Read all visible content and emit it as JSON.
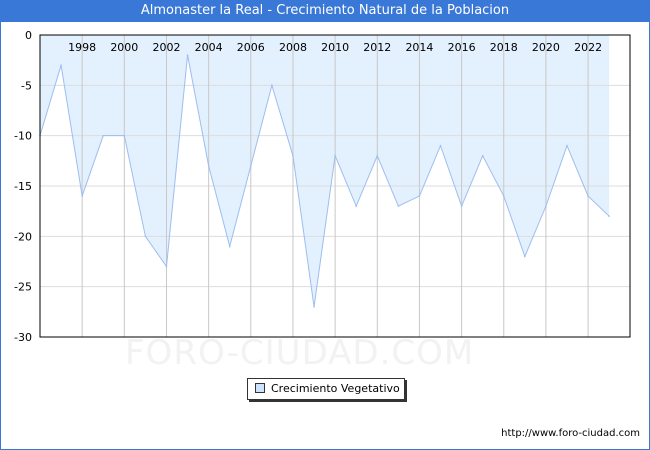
{
  "title": "Almonaster la Real - Crecimiento Natural de la Poblacion",
  "watermark": "FORO-CIUDAD.COM",
  "url": "http://www.foro-ciudad.com",
  "chart_data": {
    "type": "area",
    "title": "Almonaster la Real - Crecimiento Natural de la Poblacion",
    "x": [
      1996,
      1997,
      1998,
      1999,
      2000,
      2001,
      2002,
      2003,
      2004,
      2005,
      2006,
      2007,
      2008,
      2009,
      2010,
      2011,
      2012,
      2013,
      2014,
      2015,
      2016,
      2017,
      2018,
      2019,
      2020,
      2021,
      2022,
      2023
    ],
    "series": [
      {
        "name": "Crecimiento Vegetativo",
        "values": [
          -10,
          -3,
          -16,
          -10,
          -10,
          -20,
          -23,
          -2,
          -13,
          -21,
          -13,
          -5,
          -12,
          -27,
          -12,
          -17,
          -12,
          -17,
          -16,
          -11,
          -17,
          -12,
          -16,
          -22,
          -17,
          -11,
          -16,
          -18
        ]
      }
    ],
    "xticks": [
      "1998",
      "2000",
      "2002",
      "2004",
      "2006",
      "2008",
      "2010",
      "2012",
      "2014",
      "2016",
      "2018",
      "2020",
      "2022"
    ],
    "yticks": [
      "0",
      "-5",
      "-10",
      "-15",
      "-20",
      "-25",
      "-30"
    ],
    "ylim": [
      -30,
      0
    ],
    "legend": "bottom-center",
    "grid": true,
    "fill_color": "#e3f0fd",
    "line_color": "#9dbdf0"
  }
}
